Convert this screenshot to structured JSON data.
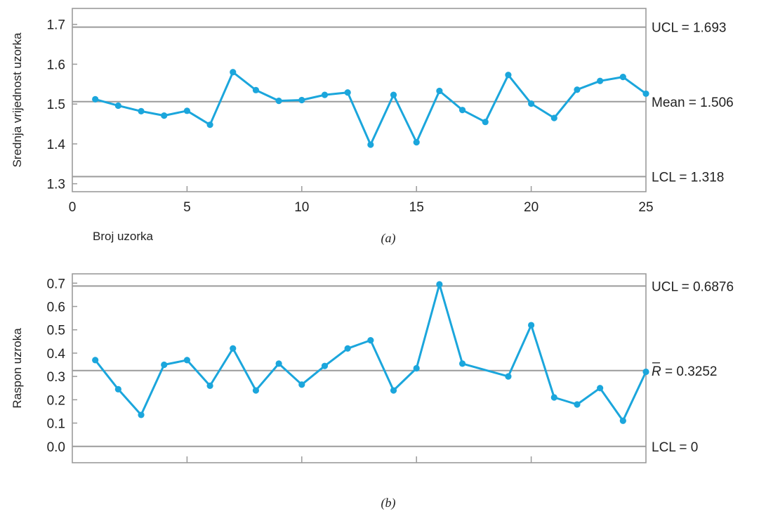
{
  "chart_data": [
    {
      "type": "line",
      "panel_label": "(a)",
      "ylabel": "Srednja vrijednost uzorka",
      "xlabel": "Broj uzorka",
      "xlim": [
        0,
        25
      ],
      "ylim": [
        1.28,
        1.74
      ],
      "x_ticks": [
        "0",
        "5",
        "10",
        "15",
        "20",
        "25"
      ],
      "y_ticks": [
        "1.3",
        "1.4",
        "1.5",
        "1.6",
        "1.7"
      ],
      "control_lines": [
        {
          "name": "UCL",
          "value": 1.693,
          "label": "UCL = 1.693"
        },
        {
          "name": "Mean",
          "value": 1.506,
          "label": "Mean = 1.506"
        },
        {
          "name": "LCL",
          "value": 1.318,
          "label": "LCL = 1.318"
        }
      ],
      "series": [
        {
          "x": [
            1,
            2,
            3,
            4,
            5,
            6,
            7,
            8,
            9,
            10,
            11,
            12,
            13,
            14,
            15,
            16,
            17,
            18,
            19,
            20,
            21,
            22,
            23,
            24,
            25
          ],
          "values": [
            1.512,
            1.496,
            1.482,
            1.471,
            1.483,
            1.448,
            1.58,
            1.535,
            1.508,
            1.51,
            1.523,
            1.529,
            1.398,
            1.523,
            1.404,
            1.533,
            1.485,
            1.455,
            1.573,
            1.501,
            1.465,
            1.536,
            1.558,
            1.568,
            1.526
          ]
        }
      ],
      "grid": false,
      "colors": {
        "series": "#1ba6dc",
        "control": "#9b9b9b",
        "frame": "#9b9b9b"
      }
    },
    {
      "type": "line",
      "panel_label": "(b)",
      "ylabel": "Raspon uzroka",
      "xlim": [
        0,
        25
      ],
      "ylim": [
        -0.07,
        0.74
      ],
      "y_ticks": [
        "0.0",
        "0.1",
        "0.2",
        "0.3",
        "0.4",
        "0.5",
        "0.6",
        "0.7"
      ],
      "control_lines": [
        {
          "name": "UCL",
          "value": 0.6876,
          "label": "UCL = 0.6876"
        },
        {
          "name": "R-bar",
          "value": 0.3252,
          "label_symbol": "R",
          "label_value": "= 0.3252"
        },
        {
          "name": "LCL",
          "value": 0,
          "label": "LCL = 0"
        }
      ],
      "series": [
        {
          "x": [
            1,
            2,
            3,
            4,
            5,
            6,
            7,
            8,
            9,
            10,
            11,
            12,
            13,
            14,
            15,
            16,
            17,
            19,
            20,
            21,
            22,
            23,
            24,
            25
          ],
          "values": [
            0.37,
            0.245,
            0.135,
            0.35,
            0.37,
            0.26,
            0.42,
            0.24,
            0.355,
            0.265,
            0.345,
            0.42,
            0.455,
            0.24,
            0.335,
            0.695,
            0.355,
            0.3,
            0.52,
            0.21,
            0.18,
            0.25,
            0.11,
            0.32
          ]
        }
      ],
      "grid": false,
      "colors": {
        "series": "#1ba6dc",
        "control": "#9b9b9b",
        "frame": "#9b9b9b"
      }
    }
  ]
}
